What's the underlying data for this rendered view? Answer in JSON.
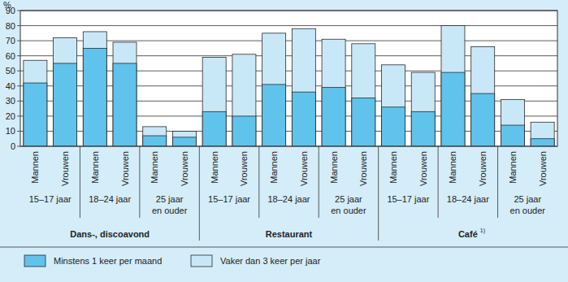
{
  "chart_data": {
    "type": "bar",
    "stacked": false,
    "grid": true,
    "y_label": "%",
    "ylim": [
      0,
      90
    ],
    "yticks": [
      0,
      10,
      20,
      30,
      40,
      50,
      60,
      70,
      80,
      90
    ],
    "categories": [
      "Mannen",
      "Vrouwen",
      "Mannen",
      "Vrouwen",
      "Mannen",
      "Vrouwen",
      "Mannen",
      "Vrouwen",
      "Mannen",
      "Vrouwen",
      "Mannen",
      "Vrouwen",
      "Mannen",
      "Vrouwen",
      "Mannen",
      "Vrouwen",
      "Mannen",
      "Vrouwen"
    ],
    "category_groups": [
      {
        "label": "15–17 jaar"
      },
      {
        "label": "18–24 jaar"
      },
      {
        "label": "25 jaar\nen ouder"
      },
      {
        "label": "15–17 jaar"
      },
      {
        "label": "18–24 jaar"
      },
      {
        "label": "25 jaar\nen ouder"
      },
      {
        "label": "15–17 jaar"
      },
      {
        "label": "18–24 jaar"
      },
      {
        "label": "25 jaar\nen ouder"
      }
    ],
    "super_groups": [
      {
        "label": "Dans-, discoavond"
      },
      {
        "label": "Restaurant"
      },
      {
        "label": "Café",
        "note": "1)"
      }
    ],
    "series": [
      {
        "name": "Minstens 1 keer per maand",
        "color": "#5fc3ec",
        "values": [
          42,
          55,
          65,
          55,
          7,
          6,
          23,
          20,
          41,
          36,
          39,
          32,
          26,
          23,
          49,
          35,
          14,
          5
        ]
      },
      {
        "name": "Vaker dan 3 keer per jaar",
        "color": "#c9e8f7",
        "values": [
          57,
          72,
          76,
          69,
          13,
          10,
          59,
          61,
          75,
          78,
          71,
          68,
          54,
          49,
          80,
          66,
          31,
          16
        ]
      }
    ]
  }
}
